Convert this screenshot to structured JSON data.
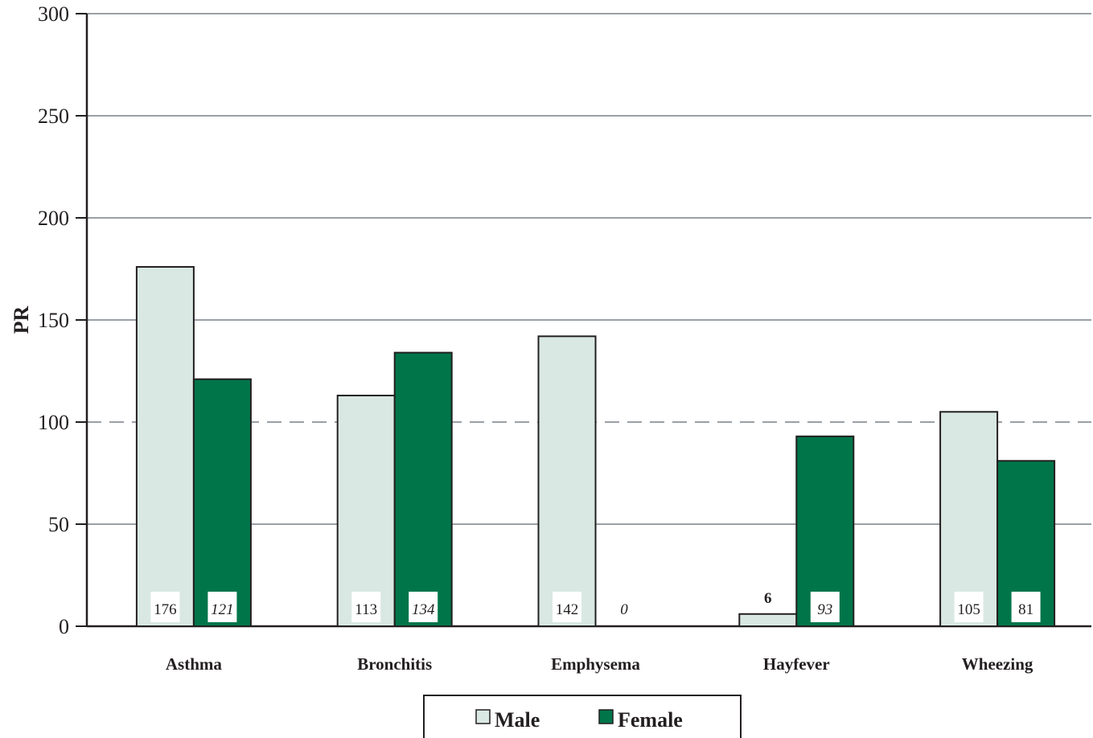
{
  "chart_data": {
    "type": "bar",
    "title": "",
    "xlabel": "",
    "ylabel": "PR",
    "ylim": [
      0,
      300
    ],
    "yticks": [
      0,
      50,
      100,
      150,
      200,
      250,
      300
    ],
    "reference_line": 100,
    "grid": true,
    "legend_position": "bottom-center",
    "categories": [
      "Asthma",
      "Bronchitis",
      "Emphysema",
      "Hayfever",
      "Wheezing"
    ],
    "series": [
      {
        "name": "Male",
        "color": "#d9e8e3",
        "values": [
          176,
          113,
          142,
          6,
          105
        ],
        "labels": [
          "176",
          "113",
          "142",
          "6",
          "105"
        ]
      },
      {
        "name": "Female",
        "color": "#00754a",
        "values": [
          121,
          134,
          0,
          93,
          81
        ],
        "labels": [
          "121",
          "134",
          "0",
          "93",
          "81"
        ]
      }
    ]
  }
}
